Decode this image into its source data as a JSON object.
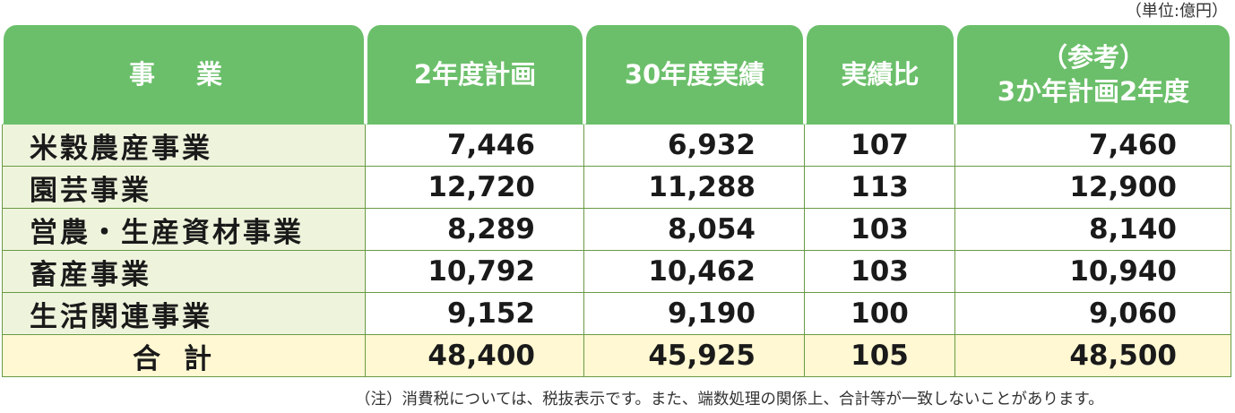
{
  "unit_label": "（単位:億円）",
  "headers": {
    "business": "事 業",
    "plan_2": "2年度計画",
    "actual_30": "30年度実績",
    "ratio": "実績比",
    "reference_line1": "（参考）",
    "reference_line2": "3か年計画2年度"
  },
  "rows": [
    {
      "name": "米穀農産事業",
      "plan": "7,446",
      "actual": "6,932",
      "ratio": "107",
      "ref": "7,460"
    },
    {
      "name": "園芸事業",
      "plan": "12,720",
      "actual": "11,288",
      "ratio": "113",
      "ref": "12,900"
    },
    {
      "name": "営農・生産資材事業",
      "plan": "8,289",
      "actual": "8,054",
      "ratio": "103",
      "ref": "8,140"
    },
    {
      "name": "畜産事業",
      "plan": "10,792",
      "actual": "10,462",
      "ratio": "103",
      "ref": "10,940"
    },
    {
      "name": "生活関連事業",
      "plan": "9,152",
      "actual": "9,190",
      "ratio": "100",
      "ref": "9,060"
    }
  ],
  "total": {
    "name": "合計",
    "plan": "48,400",
    "actual": "45,925",
    "ratio": "105",
    "ref": "48,500"
  },
  "note": "（注）消費税については、税抜表示です。また、端数処理の関係上、合計等が一致しないことがあります。",
  "colors": {
    "header_green": "#6bbf6a",
    "name_cell_bg": "#eef4dc",
    "total_row_bg": "#fff8d2",
    "grid_line": "#6a9a45"
  }
}
